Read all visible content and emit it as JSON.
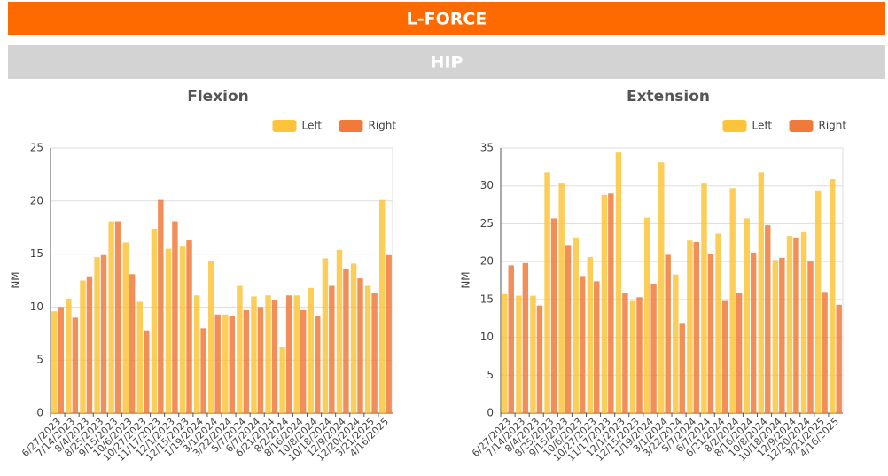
{
  "header": {
    "title": "L-FORCE"
  },
  "section": {
    "title": "HIP"
  },
  "chart_data": [
    {
      "type": "bar",
      "title": "Flexion",
      "y_label": "NM",
      "categories": [
        "6/27/2023",
        "7/14/2023",
        "8/4/2023",
        "8/25/2023",
        "9/15/2023",
        "10/6/2023",
        "10/27/2023",
        "11/17/2023",
        "12/1/2023",
        "12/15/2023",
        "1/19/2024",
        "3/1/2024",
        "3/22/2024",
        "5/7/2024",
        "6/7/2024",
        "6/21/2024",
        "8/2/2024",
        "8/16/2024",
        "10/8/2024",
        "10/18/2024",
        "12/9/2024",
        "12/20/2024",
        "3/21/2025",
        "4/16/2025"
      ],
      "series": [
        {
          "name": "Left",
          "color": "#fcc43a",
          "values": [
            9.6,
            10.8,
            12.5,
            14.7,
            18.1,
            16.1,
            10.5,
            17.4,
            15.5,
            15.7,
            11.1,
            14.3,
            9.3,
            12.0,
            11.0,
            11.1,
            6.2,
            11.1,
            11.8,
            14.6,
            15.4,
            14.1,
            12.0,
            20.1
          ]
        },
        {
          "name": "Right",
          "color": "#f07a3c",
          "values": [
            10.0,
            9.0,
            12.9,
            14.9,
            18.1,
            13.1,
            7.8,
            20.1,
            18.1,
            16.3,
            8.0,
            9.3,
            9.2,
            9.7,
            10.0,
            10.7,
            11.1,
            9.7,
            9.2,
            12.0,
            13.6,
            12.7,
            11.3,
            14.9
          ]
        }
      ],
      "ylim": [
        0,
        25
      ],
      "yticks": [
        0,
        5,
        10,
        15,
        20,
        25
      ],
      "grid": true,
      "legend": "top-right"
    },
    {
      "type": "bar",
      "title": "Extension",
      "y_label": "NM",
      "categories": [
        "6/27/2023",
        "7/14/2023",
        "8/4/2023",
        "8/25/2023",
        "9/15/2023",
        "10/6/2023",
        "10/27/2023",
        "11/17/2023",
        "12/1/2023",
        "12/15/2023",
        "1/19/2024",
        "3/1/2024",
        "3/22/2024",
        "5/7/2024",
        "6/7/2024",
        "6/21/2024",
        "8/2/2024",
        "8/16/2024",
        "10/8/2024",
        "10/18/2024",
        "12/9/2024",
        "12/20/2024",
        "3/21/2025",
        "4/16/2025"
      ],
      "series": [
        {
          "name": "Left",
          "color": "#fcc43a",
          "values": [
            15.7,
            15.5,
            15.5,
            31.8,
            30.3,
            23.2,
            20.6,
            28.8,
            34.4,
            14.8,
            25.8,
            33.1,
            18.3,
            22.8,
            30.3,
            23.7,
            29.7,
            25.7,
            31.8,
            20.2,
            23.4,
            23.9,
            29.4,
            30.9
          ]
        },
        {
          "name": "Right",
          "color": "#f07a3c",
          "values": [
            19.5,
            19.8,
            14.2,
            25.7,
            22.2,
            18.1,
            17.4,
            29.0,
            15.9,
            15.3,
            17.1,
            20.9,
            11.9,
            22.6,
            21.0,
            14.8,
            15.9,
            21.2,
            24.8,
            20.5,
            23.2,
            20.0,
            16.0,
            14.3
          ]
        }
      ],
      "ylim": [
        0,
        35
      ],
      "yticks": [
        0,
        5,
        10,
        15,
        20,
        25,
        30,
        35
      ],
      "grid": true,
      "legend": "top-right"
    }
  ]
}
